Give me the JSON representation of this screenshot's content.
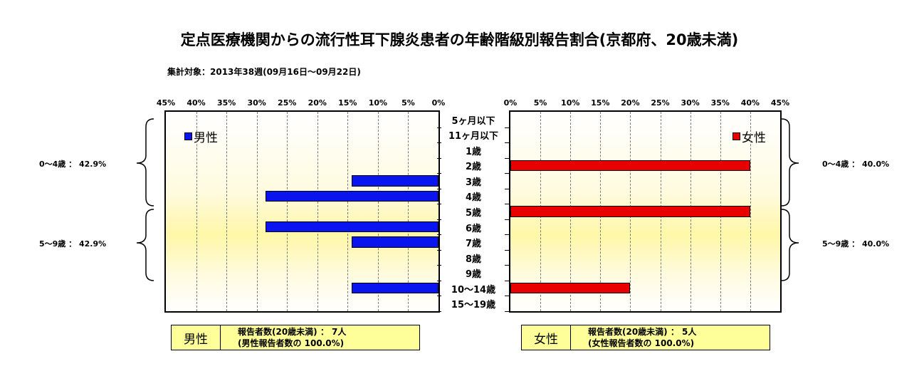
{
  "title": "定点医療機関からの流行性耳下腺炎患者の年齢階級別報告割合(京都府、20歳未満)",
  "subtitle": "集計対象：2013年38週(09月16日～09月22日)",
  "chart_data": {
    "type": "bar",
    "orientation": "horizontal",
    "categories": [
      "5ヶ月以下",
      "11ヶ月以下",
      "1歳",
      "2歳",
      "3歳",
      "4歳",
      "5歳",
      "6歳",
      "7歳",
      "8歳",
      "9歳",
      "10～14歳",
      "15～19歳"
    ],
    "xlim": [
      0,
      45
    ],
    "x_ticks": [
      "0%",
      "5%",
      "10%",
      "15%",
      "20%",
      "25%",
      "30%",
      "35%",
      "40%",
      "45%"
    ],
    "grid": true,
    "series": [
      {
        "name": "男性",
        "side": "left",
        "color": "#0a14ee",
        "values": [
          0,
          0,
          0,
          0,
          14.3,
          28.6,
          0,
          28.6,
          14.3,
          0,
          0,
          14.3,
          0
        ]
      },
      {
        "name": "女性",
        "side": "right",
        "color": "#e80000",
        "values": [
          0,
          0,
          0,
          40.0,
          0,
          0,
          40.0,
          0,
          0,
          0,
          0,
          20.0,
          0
        ]
      }
    ],
    "legend_male": "男性",
    "legend_female": "女性",
    "groups": {
      "male_0_4": "0～4歳 ： 42.9%",
      "male_5_9": "5～9歳 ： 42.9%",
      "female_0_4": "0～4歳 ： 40.0%",
      "female_5_9": "5～9歳 ： 40.0%"
    }
  },
  "summary": {
    "male": {
      "label": "男性",
      "line1": "報告者数(20歳未満) ： 7人",
      "line2": "(男性報告者数の 100.0%)"
    },
    "female": {
      "label": "女性",
      "line1": "報告者数(20歳未満) ： 5人",
      "line2": "(女性報告者数の 100.0%)"
    }
  }
}
